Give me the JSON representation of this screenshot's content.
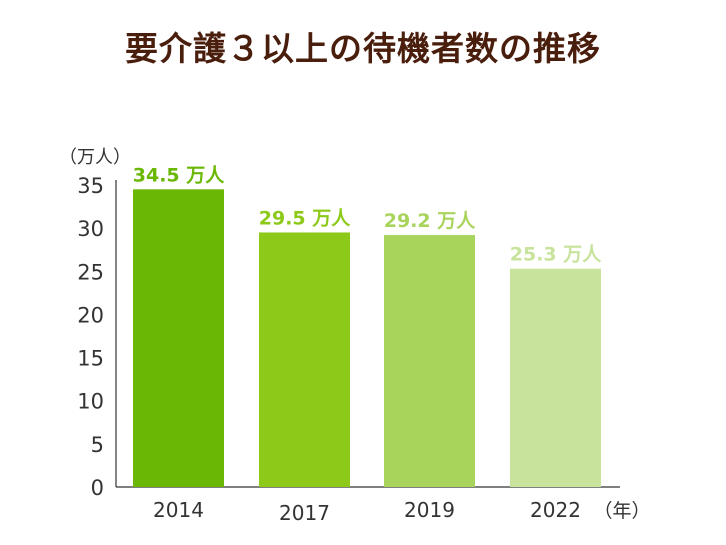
{
  "chart_data": {
    "type": "bar",
    "title": "要介護３以上の待機者数の推移",
    "ylabel": "（万人）",
    "xlabel": "（年）",
    "categories": [
      "2014",
      "2017",
      "2019",
      "2022"
    ],
    "values": [
      34.5,
      29.5,
      29.2,
      25.3
    ],
    "data_labels": [
      "34.5 万人",
      "29.5 万人",
      "29.2 万人",
      "25.3 万人"
    ],
    "colors": [
      "#6ab704",
      "#8cc919",
      "#a9d45c",
      "#c8e39b"
    ],
    "ylim": [
      0,
      35
    ],
    "yticks": [
      0,
      5,
      10,
      15,
      20,
      25,
      30,
      35
    ],
    "grid": false
  }
}
